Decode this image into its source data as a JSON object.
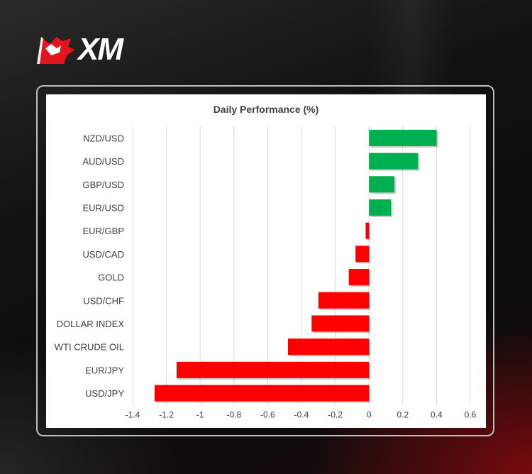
{
  "brand": {
    "logo_text": "XM",
    "logo_icon": "bull-logo-icon"
  },
  "colors": {
    "positive": "#00b050",
    "negative": "#ff0000",
    "grid": "#d9d9d9",
    "text": "#404040"
  },
  "chart_data": {
    "type": "bar",
    "orientation": "horizontal",
    "title": "Daily Performance (%)",
    "categories": [
      "NZD/USD",
      "AUD/USD",
      "GBP/USD",
      "EUR/USD",
      "EUR/GBP",
      "USD/CAD",
      "GOLD",
      "USD/CHF",
      "DOLLAR INDEX",
      "WTI CRUDE OIL",
      "EUR/JPY",
      "USD/JPY"
    ],
    "values": [
      0.4,
      0.29,
      0.15,
      0.13,
      -0.02,
      -0.08,
      -0.12,
      -0.3,
      -0.34,
      -0.48,
      -1.14,
      -1.27
    ],
    "xlim": [
      -1.4,
      0.6
    ],
    "xticks": [
      "-1.4",
      "-1.2",
      "-1",
      "-0.8",
      "-0.6",
      "-0.4",
      "-0.2",
      "0",
      "0.2",
      "0.4",
      "0.6"
    ],
    "grid": true,
    "legend": "none"
  }
}
